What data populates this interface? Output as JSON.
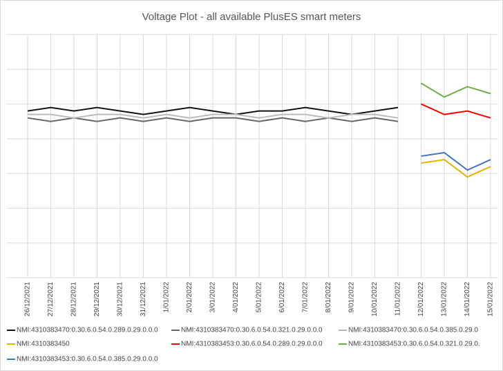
{
  "chart_data": {
    "type": "line",
    "title": "Voltage Plot - all available PlusES smart meters",
    "categories": [
      "26/12/2021",
      "27/12/2021",
      "28/12/2021",
      "29/12/2021",
      "30/12/2021",
      "31/12/2021",
      "1/01/2022",
      "2/01/2022",
      "3/01/2022",
      "4/01/2022",
      "5/01/2022",
      "6/01/2022",
      "7/01/2022",
      "8/01/2022",
      "9/01/2022",
      "10/01/2022",
      "11/01/2022",
      "12/01/2022",
      "13/01/2022",
      "14/01/2022",
      "15/01/2022"
    ],
    "ylim": [
      0,
      7
    ],
    "yticks": [
      0,
      1,
      2,
      3,
      4,
      5,
      6,
      7
    ],
    "grid": true,
    "series": [
      {
        "name": "NMI:4310383470:0.30.6.0.54.0.289.0.29.0.0.0",
        "color": "#111111",
        "values": [
          4.8,
          4.9,
          4.8,
          4.9,
          4.8,
          4.7,
          4.8,
          4.9,
          4.8,
          4.7,
          4.8,
          4.8,
          4.9,
          4.8,
          4.7,
          4.8,
          4.9,
          null,
          null,
          null,
          null
        ]
      },
      {
        "name": "NMI:4310383470:0.30.6.0.54.0.321.0.29.0.0.0",
        "color": "#666666",
        "values": [
          4.6,
          4.5,
          4.6,
          4.5,
          4.6,
          4.5,
          4.6,
          4.5,
          4.6,
          4.6,
          4.5,
          4.6,
          4.5,
          4.6,
          4.5,
          4.6,
          4.5,
          null,
          null,
          null,
          null
        ]
      },
      {
        "name": "NMI:4310383470:0.30.6.0.54.0.385.0.29.0",
        "color": "#bbbbbb",
        "values": [
          4.7,
          4.7,
          4.6,
          4.7,
          4.7,
          4.6,
          4.7,
          4.6,
          4.7,
          4.7,
          4.6,
          4.7,
          4.7,
          4.6,
          4.7,
          4.7,
          4.6,
          null,
          null,
          null,
          null
        ]
      },
      {
        "name": "NMI:4310383450",
        "color": "#e6b000",
        "values": [
          null,
          null,
          null,
          null,
          null,
          null,
          null,
          null,
          null,
          null,
          null,
          null,
          null,
          null,
          null,
          null,
          null,
          3.3,
          3.4,
          2.9,
          3.2
        ]
      },
      {
        "name": "NMI:4310383453:0.30.6.0.54.0.289.0.29.0.0.0",
        "color": "#ff0000",
        "values": [
          null,
          null,
          null,
          null,
          null,
          null,
          null,
          null,
          null,
          null,
          null,
          null,
          null,
          null,
          null,
          null,
          null,
          5.0,
          4.7,
          4.8,
          4.6
        ]
      },
      {
        "name": "NMI:4310383453:0.30.6.0.54.0.321.0.29.0.",
        "color": "#70ad47",
        "values": [
          null,
          null,
          null,
          null,
          null,
          null,
          null,
          null,
          null,
          null,
          null,
          null,
          null,
          null,
          null,
          null,
          null,
          5.6,
          5.2,
          5.5,
          5.3
        ]
      },
      {
        "name": "NMI:4310383453:0.30.6.0.54.0.385.0.29.0.0.0",
        "color": "#4472c4",
        "values": [
          null,
          null,
          null,
          null,
          null,
          null,
          null,
          null,
          null,
          null,
          null,
          null,
          null,
          null,
          null,
          null,
          null,
          3.5,
          3.6,
          3.1,
          3.4
        ]
      }
    ]
  }
}
